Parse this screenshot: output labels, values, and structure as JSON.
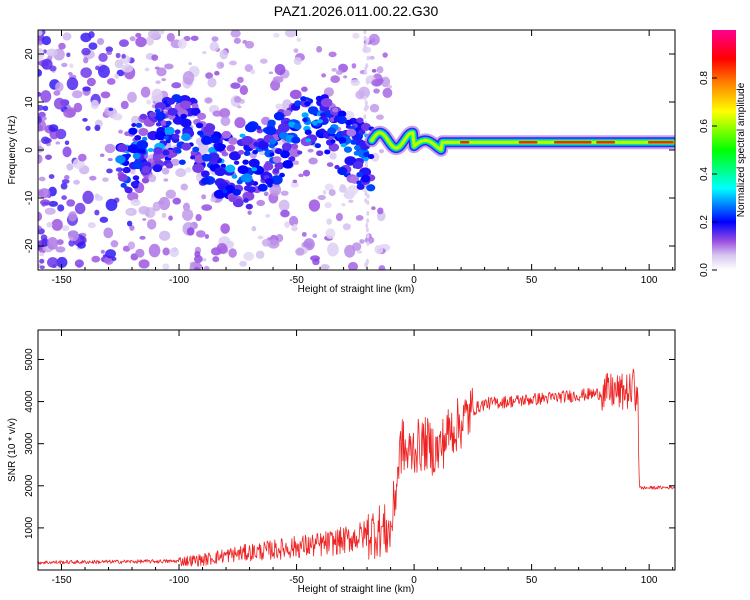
{
  "title": "PAZ1.2026.011.00.22.G30",
  "colors": {
    "snr_line": "#ee2222",
    "axis": "#000000",
    "background": "#ffffff"
  },
  "chart_data": [
    {
      "type": "heatmap",
      "name": "spectrogram",
      "xlabel": "Height of straight line (km)",
      "ylabel": "Frequency (Hz)",
      "xlim": [
        -160,
        111
      ],
      "ylim": [
        -25,
        25
      ],
      "xticks": [
        -150,
        -100,
        -50,
        0,
        50,
        100
      ],
      "yticks": [
        -20,
        -10,
        0,
        10,
        20
      ],
      "colorbar": {
        "label": "Normalized spectral amplitude",
        "range": [
          0,
          1
        ],
        "ticks": [
          0.0,
          0.2,
          0.4,
          0.6,
          0.8
        ],
        "tick_labels": [
          "0.0",
          "0.2",
          "0.4",
          "0.6",
          "0.8"
        ],
        "colormap": [
          "#ffffff",
          "#8a2be2",
          "#0000ff",
          "#00ffff",
          "#00ff00",
          "#ffff00",
          "#ff8000",
          "#ff0000",
          "#ff00ff"
        ]
      },
      "features": [
        {
          "segment": "noise",
          "x_range": [
            -160,
            -100
          ],
          "freq_range": [
            -25,
            25
          ],
          "amplitude": 0.08
        },
        {
          "segment": "wandering",
          "x_range": [
            -125,
            -20
          ],
          "freq_center": "wavy ~0 to +8 Hz",
          "amplitude": 0.2
        },
        {
          "segment": "tracked",
          "x_range": [
            -18,
            111
          ],
          "freq_center": 1.5,
          "amplitude": 0.95
        }
      ]
    },
    {
      "type": "line",
      "name": "snr",
      "xlabel": "Height of straight line (km)",
      "ylabel": "SNR (10 * v/v)",
      "xlim": [
        -160,
        111
      ],
      "ylim": [
        0,
        5700
      ],
      "xticks": [
        -150,
        -100,
        -50,
        0,
        50,
        100
      ],
      "yticks": [
        1000,
        2000,
        3000,
        4000,
        5000
      ],
      "series": [
        {
          "name": "SNR",
          "x": [
            -160,
            -140,
            -120,
            -100,
            -90,
            -80,
            -70,
            -60,
            -50,
            -40,
            -30,
            -20,
            -15,
            -10,
            -8,
            -6,
            -5,
            -3,
            0,
            5,
            10,
            15,
            20,
            25,
            30,
            40,
            50,
            60,
            70,
            80,
            85,
            88,
            90,
            93,
            95,
            96,
            97,
            100,
            105,
            111
          ],
          "values": [
            180,
            190,
            200,
            210,
            240,
            350,
            420,
            480,
            550,
            600,
            700,
            850,
            950,
            900,
            1800,
            2800,
            3000,
            2700,
            2900,
            3000,
            2800,
            3300,
            3500,
            3800,
            3950,
            4000,
            4050,
            4100,
            4150,
            4200,
            4250,
            4200,
            4250,
            4200,
            4100,
            1950,
            1950,
            1950,
            1960,
            1960
          ],
          "color": "#ee2222"
        }
      ]
    }
  ]
}
